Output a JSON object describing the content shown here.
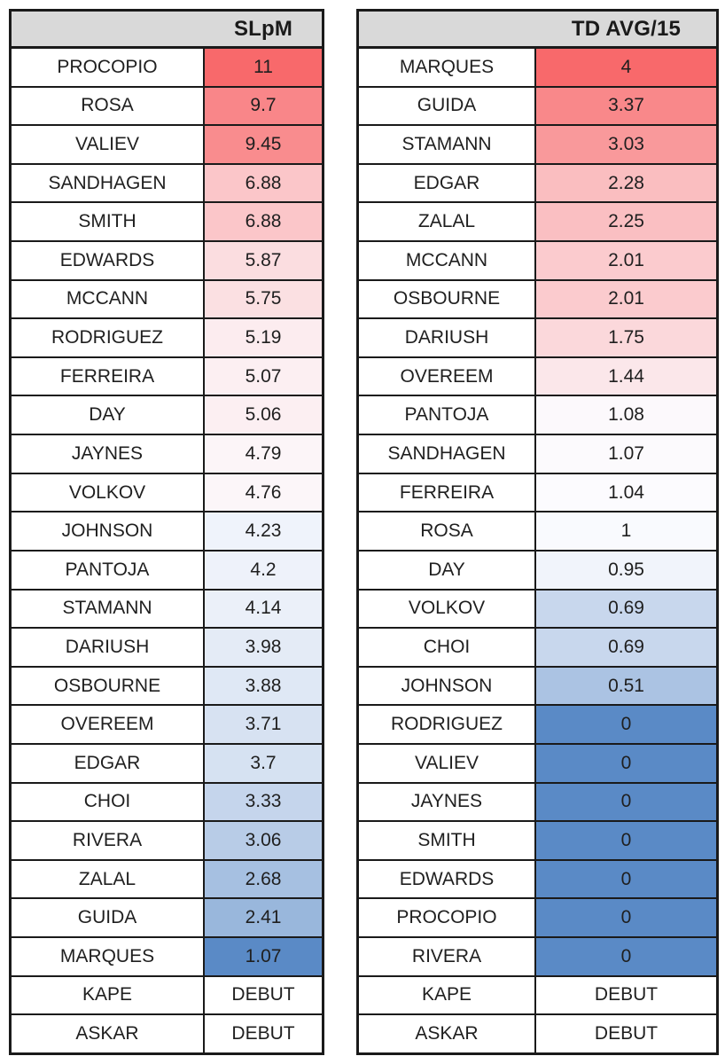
{
  "colors": {
    "page_background": "#ffffff",
    "header_background": "#d9d9d9",
    "grid_border": "#1a1a1a",
    "cell_text": "#1f1f1f",
    "scale_high_red": "#f8696b",
    "scale_mid_white": "#fcfcff",
    "scale_low_blue": "#5a8ac6",
    "debut_cell_background": "#ffffff"
  },
  "chart_data": [
    {
      "type": "table",
      "title": "SLpM",
      "header_row": {
        "name_col": "",
        "value_col": "SLpM"
      },
      "conditional_format": {
        "type": "3-color-scale",
        "high_color": "#f8696b",
        "mid_color": "#fcfcff",
        "low_color": "#5a8ac6",
        "note": "highest value = red, midpoint = white, lowest value = blue; DEBUT cells unfilled"
      },
      "rows": [
        {
          "name": "PROCOPIO",
          "value": "11",
          "bg": "#f8696b"
        },
        {
          "name": "ROSA",
          "value": "9.7",
          "bg": "#f98689"
        },
        {
          "name": "VALIEV",
          "value": "9.45",
          "bg": "#f98c8e"
        },
        {
          "name": "SANDHAGEN",
          "value": "6.88",
          "bg": "#fbc6c9"
        },
        {
          "name": "SMITH",
          "value": "6.88",
          "bg": "#fbc6c9"
        },
        {
          "name": "EDWARDS",
          "value": "5.87",
          "bg": "#fbdde0"
        },
        {
          "name": "MCCANN",
          "value": "5.75",
          "bg": "#fbe0e2"
        },
        {
          "name": "RODRIGUEZ",
          "value": "5.19",
          "bg": "#fcecef"
        },
        {
          "name": "FERREIRA",
          "value": "5.07",
          "bg": "#fceff2"
        },
        {
          "name": "DAY",
          "value": "5.06",
          "bg": "#fceff2"
        },
        {
          "name": "JAYNES",
          "value": "4.79",
          "bg": "#fcf5f8"
        },
        {
          "name": "VOLKOV",
          "value": "4.76",
          "bg": "#fcf6f9"
        },
        {
          "name": "JOHNSON",
          "value": "4.23",
          "bg": "#eff3fb"
        },
        {
          "name": "PANTOJA",
          "value": "4.2",
          "bg": "#eef2fa"
        },
        {
          "name": "STAMANN",
          "value": "4.14",
          "bg": "#ebf0f9"
        },
        {
          "name": "DARIUSH",
          "value": "3.98",
          "bg": "#e4ebf6"
        },
        {
          "name": "OSBOURNE",
          "value": "3.88",
          "bg": "#dfe8f5"
        },
        {
          "name": "OVEREEM",
          "value": "3.71",
          "bg": "#d7e2f2"
        },
        {
          "name": "EDGAR",
          "value": "3.7",
          "bg": "#d6e2f2"
        },
        {
          "name": "CHOI",
          "value": "3.33",
          "bg": "#c5d5ec"
        },
        {
          "name": "RIVERA",
          "value": "3.06",
          "bg": "#b8cce7"
        },
        {
          "name": "ZALAL",
          "value": "2.68",
          "bg": "#a6c0e1"
        },
        {
          "name": "GUIDA",
          "value": "2.41",
          "bg": "#99b7dc"
        },
        {
          "name": "MARQUES",
          "value": "1.07",
          "bg": "#5a8ac6"
        },
        {
          "name": "KAPE",
          "value": "DEBUT",
          "bg": "#ffffff"
        },
        {
          "name": "ASKAR",
          "value": "DEBUT",
          "bg": "#ffffff"
        }
      ]
    },
    {
      "type": "table",
      "title": "TD AVG/15",
      "header_row": {
        "name_col": "",
        "value_col": "TD AVG/15"
      },
      "conditional_format": {
        "type": "3-color-scale",
        "high_color": "#f8696b",
        "mid_color": "#fcfcff",
        "low_color": "#5a8ac6",
        "note": "highest value = red, midpoint = white, lowest value = blue; DEBUT cells unfilled"
      },
      "rows": [
        {
          "name": "MARQUES",
          "value": "4",
          "bg": "#f8696b"
        },
        {
          "name": "GUIDA",
          "value": "3.37",
          "bg": "#f9888a"
        },
        {
          "name": "STAMANN",
          "value": "3.03",
          "bg": "#f9999b"
        },
        {
          "name": "EDGAR",
          "value": "2.28",
          "bg": "#fabec0"
        },
        {
          "name": "ZALAL",
          "value": "2.25",
          "bg": "#fabfc2"
        },
        {
          "name": "MCCANN",
          "value": "2.01",
          "bg": "#fbcbce"
        },
        {
          "name": "OSBOURNE",
          "value": "2.01",
          "bg": "#fbcbce"
        },
        {
          "name": "DARIUSH",
          "value": "1.75",
          "bg": "#fbd8db"
        },
        {
          "name": "OVEREEM",
          "value": "1.44",
          "bg": "#fbe7ea"
        },
        {
          "name": "PANTOJA",
          "value": "1.08",
          "bg": "#fcf9fc"
        },
        {
          "name": "SANDHAGEN",
          "value": "1.07",
          "bg": "#fcfafd"
        },
        {
          "name": "FERREIRA",
          "value": "1.04",
          "bg": "#fcfbfe"
        },
        {
          "name": "ROSA",
          "value": "1",
          "bg": "#f9fafe"
        },
        {
          "name": "DAY",
          "value": "0.95",
          "bg": "#f1f4fb"
        },
        {
          "name": "VOLKOV",
          "value": "0.69",
          "bg": "#c8d7ed"
        },
        {
          "name": "CHOI",
          "value": "0.69",
          "bg": "#c8d7ed"
        },
        {
          "name": "JOHNSON",
          "value": "0.51",
          "bg": "#abc3e3"
        },
        {
          "name": "RODRIGUEZ",
          "value": "0",
          "bg": "#5a8ac6"
        },
        {
          "name": "VALIEV",
          "value": "0",
          "bg": "#5a8ac6"
        },
        {
          "name": "JAYNES",
          "value": "0",
          "bg": "#5a8ac6"
        },
        {
          "name": "SMITH",
          "value": "0",
          "bg": "#5a8ac6"
        },
        {
          "name": "EDWARDS",
          "value": "0",
          "bg": "#5a8ac6"
        },
        {
          "name": "PROCOPIO",
          "value": "0",
          "bg": "#5a8ac6"
        },
        {
          "name": "RIVERA",
          "value": "0",
          "bg": "#5a8ac6"
        },
        {
          "name": "KAPE",
          "value": "DEBUT",
          "bg": "#ffffff"
        },
        {
          "name": "ASKAR",
          "value": "DEBUT",
          "bg": "#ffffff"
        }
      ]
    }
  ]
}
